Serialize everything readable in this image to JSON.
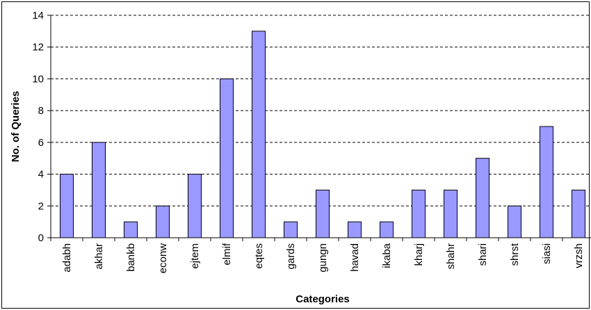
{
  "chart_data": {
    "type": "bar",
    "title": "",
    "xlabel": "Categories",
    "ylabel": "No. of Queries",
    "ylim": [
      0,
      14
    ],
    "yticks": [
      0,
      2,
      4,
      6,
      8,
      10,
      12,
      14
    ],
    "grid": "horizontal dashed",
    "legend": "none",
    "bar_color": "#9999ff",
    "categories": [
      "adabh",
      "akhar",
      "bankb",
      "econw",
      "ejtem",
      "elmif",
      "eqtes",
      "gards",
      "gungn",
      "havad",
      "ikaba",
      "kharj",
      "shahr",
      "shari",
      "shrst",
      "siasi",
      "vrzsh"
    ],
    "values": [
      4,
      6,
      1,
      2,
      4,
      10,
      13,
      1,
      3,
      1,
      1,
      3,
      3,
      5,
      2,
      7,
      3
    ]
  }
}
